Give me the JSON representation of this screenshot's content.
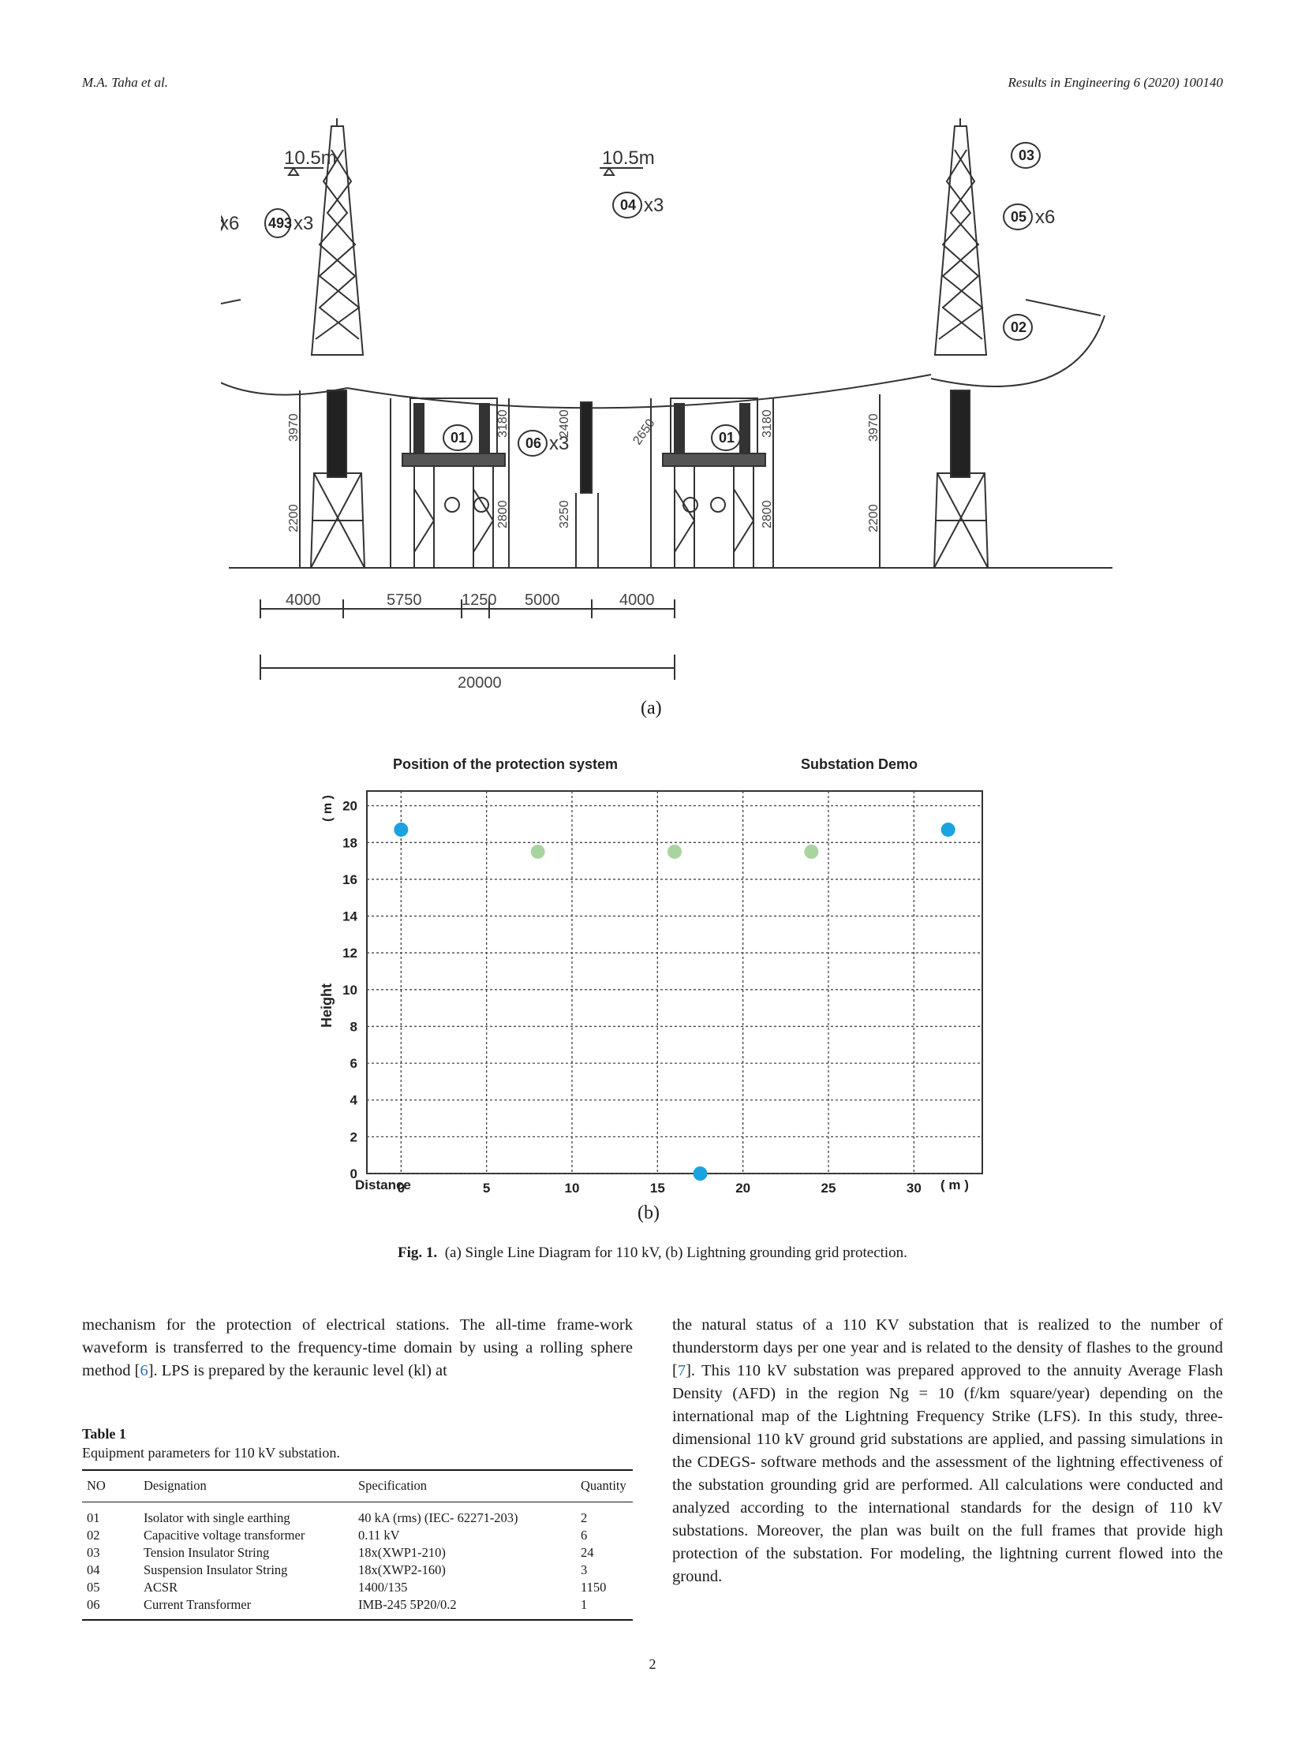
{
  "header": {
    "authors": "M.A. Taha et al.",
    "journal": "Results in Engineering 6 (2020) 100140"
  },
  "figure_a": {
    "label": "(a)",
    "callouts": {
      "c01": "01",
      "c02": "02",
      "c03": "03",
      "c04": "04",
      "c05": "05",
      "c06": "06",
      "c493": "493"
    },
    "multipliers": {
      "x6": "x6",
      "x3": "x3"
    },
    "level_mark": "10.5m",
    "vertical_dims": [
      "3970",
      "2200",
      "3180",
      "2800",
      "2400",
      "3250",
      "2800",
      "2200",
      "3180",
      "3970",
      "2650"
    ],
    "bottom_dims": [
      "4000",
      "5750",
      "1250",
      "5000",
      "4000"
    ],
    "total_dim": "20000"
  },
  "figure_b": {
    "label": "(b)",
    "plot_title": "Position of the protection system",
    "plot_subtitle": "Substation Demo",
    "xlabel": "Distance",
    "xunit": "( m )",
    "ylabel": "Height",
    "yunit": "( m )"
  },
  "chart_data": {
    "type": "scatter",
    "title": "Position of the protection system",
    "subtitle": "Substation Demo",
    "xlabel": "Distance",
    "ylabel": "Height",
    "xlim": [
      -2,
      34
    ],
    "ylim": [
      0,
      20.8
    ],
    "x_ticks": [
      0,
      5,
      10,
      15,
      20,
      25,
      30
    ],
    "y_ticks": [
      0,
      2,
      4,
      6,
      8,
      10,
      12,
      14,
      16,
      18,
      20
    ],
    "grid": true,
    "series": [
      {
        "color": "#1aa3e0",
        "points": [
          [
            0,
            18.7
          ],
          [
            32,
            18.7
          ],
          [
            17.5,
            0
          ]
        ]
      },
      {
        "color": "#a9d4a0",
        "points": [
          [
            8,
            17.5
          ],
          [
            16,
            17.5
          ],
          [
            24,
            17.5
          ]
        ]
      }
    ]
  },
  "caption": {
    "label": "Fig. 1.",
    "text": "(a) Single Line Diagram for 110 kV, (b) Lightning grounding grid protection."
  },
  "body": {
    "left_p1_a": "mechanism for the protection of electrical stations. The all-time frame-work waveform is transferred to the frequency-time domain by using a rolling sphere method [",
    "left_p1_ref": "6",
    "left_p1_b": "]. LPS is prepared by the keraunic level (kl) at",
    "right_p1_a": "the natural status of a 110 KV substation that is realized to the number of thunderstorm days per one year and is related to the density of flashes to the ground [",
    "right_p1_ref": "7",
    "right_p1_b": "]. This 110 kV substation was prepared approved to the annuity Average Flash Density (AFD) in the region Ng = 10 (f/km square/year) depending on the international map of the Lightning Frequency Strike (LFS). In this study, three-dimensional 110 kV ground grid substations are applied, and passing simulations in the CDEGS- software methods and the assessment of the lightning effectiveness of the substation grounding grid are performed. All calculations were conducted and analyzed according to the international standards for the design of 110 kV substations. Moreover, the plan was built on the full frames that provide high protection of the substation. For modeling, the lightning current flowed into the ground."
  },
  "table1": {
    "title": "Table 1",
    "subtitle": "Equipment parameters for 110 kV substation.",
    "headers": [
      "NO",
      "Designation",
      "Specification",
      "Quantity"
    ],
    "rows": [
      [
        "01",
        "Isolator with single earthing",
        "40 kA (rms) (IEC- 62271-203)",
        "2"
      ],
      [
        "02",
        "Capacitive voltage transformer",
        "0.11 kV",
        "6"
      ],
      [
        "03",
        "Tension Insulator String",
        "18x(XWP1-210)",
        "24"
      ],
      [
        "04",
        "Suspension Insulator String",
        "18x(XWP2-160)",
        "3"
      ],
      [
        "05",
        "ACSR",
        "1400/135",
        "1150"
      ],
      [
        "06",
        "Current Transformer",
        "IMB-245 5P20/0.2",
        "1"
      ]
    ]
  },
  "page_number": "2"
}
